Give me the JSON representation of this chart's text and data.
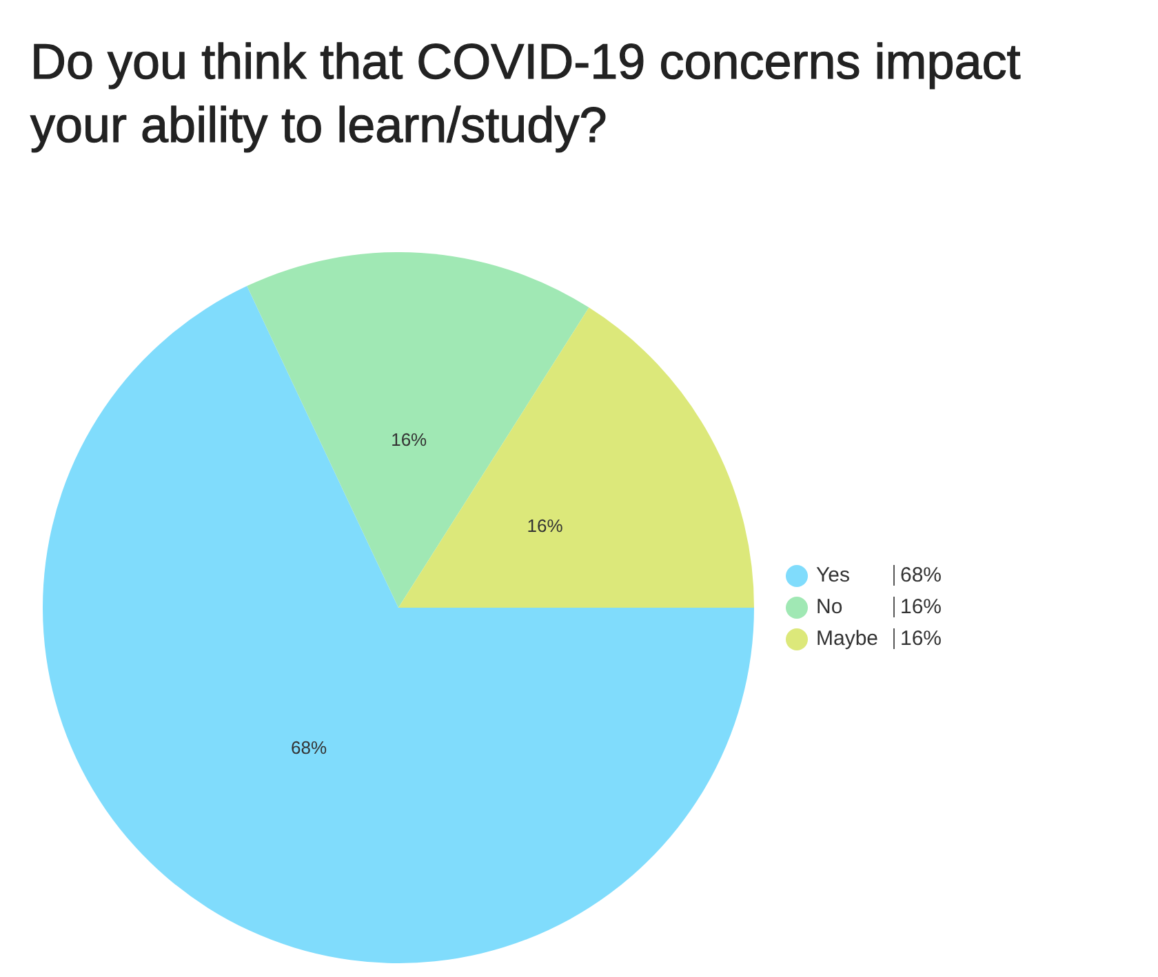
{
  "chart_data": {
    "type": "pie",
    "title": "Do you think that COVID-19 concerns impact your ability to learn/study?",
    "categories": [
      "Yes",
      "No",
      "Maybe"
    ],
    "values": [
      68,
      16,
      16
    ],
    "colors": [
      "#80dcfc",
      "#a0e8b4",
      "#dce87a"
    ],
    "value_labels": [
      "68%",
      "16%",
      "16%"
    ],
    "legend": "right"
  }
}
